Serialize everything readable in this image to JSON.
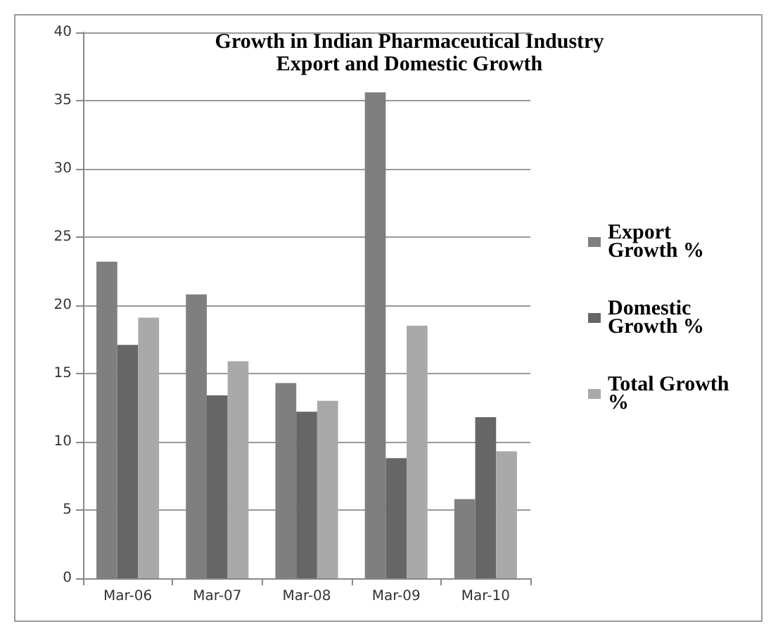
{
  "chart_data": {
    "type": "bar",
    "title": "Growth in Indian Pharmaceutical Industry\nExport and Domestic Growth",
    "categories": [
      "Mar-06",
      "Mar-07",
      "Mar-08",
      "Mar-09",
      "Mar-10"
    ],
    "series": [
      {
        "name": "Export Growth %",
        "color": "#7f7f7f",
        "values": [
          23.2,
          20.8,
          14.3,
          35.6,
          5.8
        ]
      },
      {
        "name": "Domestic Growth %",
        "color": "#666666",
        "values": [
          17.1,
          13.4,
          12.2,
          8.8,
          11.8
        ]
      },
      {
        "name": "Total Growth %",
        "color": "#a9a9a9",
        "values": [
          19.1,
          15.9,
          13.0,
          18.5,
          9.3
        ]
      }
    ],
    "ylim": [
      0,
      40
    ],
    "yticks": [
      0,
      5,
      10,
      15,
      20,
      25,
      30,
      35,
      40
    ],
    "grid": "y",
    "legend": "right"
  }
}
